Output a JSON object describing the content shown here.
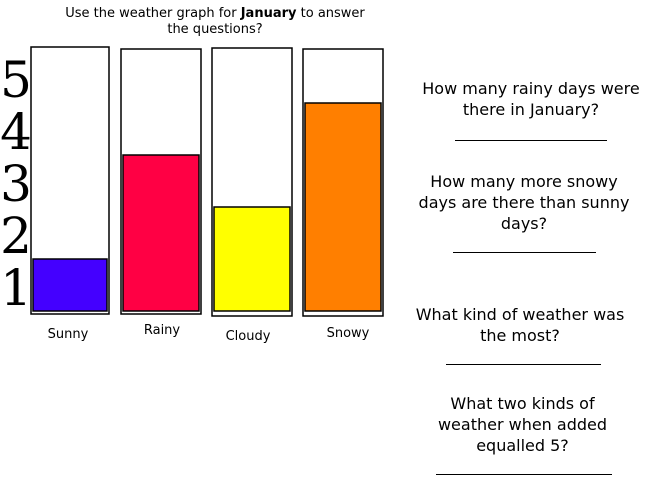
{
  "instructions": {
    "prefix": "Use the weather graph for ",
    "bold": "January",
    "suffix": " to answer the questions?"
  },
  "chart_data": {
    "type": "bar",
    "categories": [
      "Sunny",
      "Rainy",
      "Cloudy",
      "Snowy"
    ],
    "values": [
      1,
      3,
      2,
      4
    ],
    "colors": [
      "#4400ff",
      "#ff0044",
      "#ffff00",
      "#ff7f00"
    ],
    "y_ticks": [
      "1",
      "2",
      "3",
      "4",
      "5"
    ],
    "ylim": [
      0,
      5
    ],
    "grid": false
  },
  "questions": [
    {
      "text": "How many rainy days were there in January?"
    },
    {
      "text": "How many more snowy days are there than sunny days?"
    },
    {
      "text": "What kind of weather was the most?"
    },
    {
      "text": "What two kinds of weather when added equalled 5?"
    }
  ]
}
